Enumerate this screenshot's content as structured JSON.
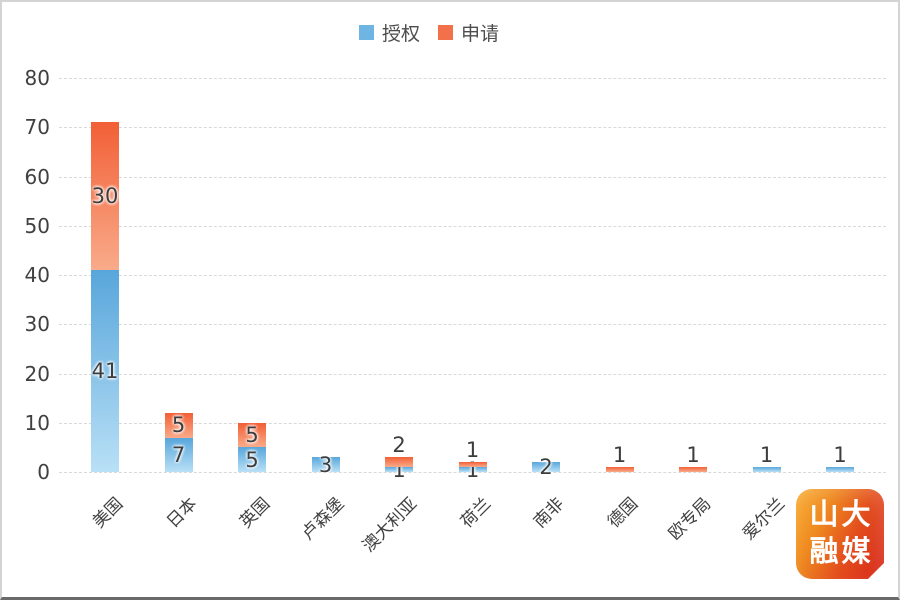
{
  "legend": {
    "authorized": "授权",
    "applied": "申请"
  },
  "colors": {
    "authorized_legend": "#6FB5E3",
    "authorized_gradient_top": "#58A6DB",
    "authorized_gradient_bottom": "#B9E0F6",
    "applied_legend": "#F2714B",
    "applied_gradient_top": "#F25F36",
    "applied_gradient_bottom": "#F9AB8A",
    "gridline": "#D9D9D9",
    "axis_text": "#404040"
  },
  "chart_data": {
    "type": "bar",
    "stacked": true,
    "grid": true,
    "legend_position": "top",
    "categories": [
      "美国",
      "日本",
      "英国",
      "卢森堡",
      "澳大利亚",
      "荷兰",
      "南非",
      "德国",
      "欧专局",
      "爱尔兰",
      ""
    ],
    "series": [
      {
        "name": "授权",
        "values": [
          41,
          7,
          5,
          3,
          1,
          1,
          2,
          0,
          0,
          1,
          1
        ],
        "label_placement": [
          "inside",
          "inside",
          "inside",
          "inside",
          "inside",
          "inside",
          "inside",
          "",
          "",
          "above",
          "above"
        ]
      },
      {
        "name": "申请",
        "values": [
          30,
          5,
          5,
          0,
          2,
          1,
          0,
          1,
          1,
          0,
          0
        ],
        "label_placement": [
          "inside",
          "inside",
          "inside",
          "",
          "above",
          "above",
          "",
          "above",
          "above",
          "",
          ""
        ]
      }
    ],
    "totals": [
      71,
      12,
      10,
      3,
      3,
      2,
      2,
      1,
      1,
      1,
      1
    ],
    "ylim": [
      0,
      80
    ],
    "ytick_step": 10,
    "yticks": [
      0,
      10,
      20,
      30,
      40,
      50,
      60,
      70,
      80
    ],
    "xlabel": "",
    "ylabel": "",
    "title": ""
  },
  "logo": {
    "line1": "山大",
    "line2": "融媒"
  }
}
